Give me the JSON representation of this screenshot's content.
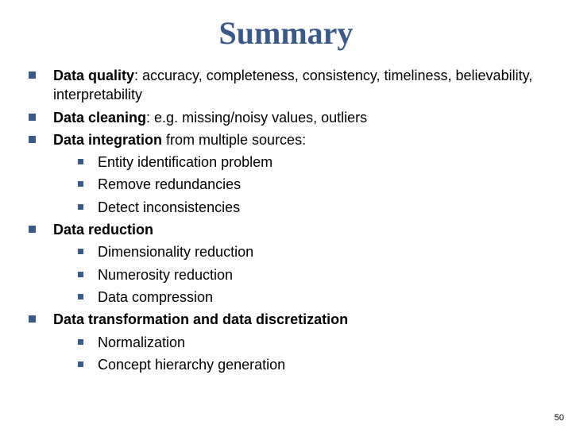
{
  "title": "Summary",
  "bullets": [
    {
      "bold": "Data quality",
      "rest": ": accuracy, completeness, consistency, timeliness, believability, interpretability"
    },
    {
      "bold": "Data cleaning",
      "rest": ": e.g. missing/noisy values, outliers"
    },
    {
      "bold": "Data integration",
      "rest": " from multiple sources:",
      "subs": [
        "Entity identification problem",
        "Remove redundancies",
        "Detect inconsistencies"
      ]
    },
    {
      "bold": "Data reduction",
      "rest": "",
      "subs": [
        "Dimensionality reduction",
        "Numerosity reduction",
        "Data compression"
      ]
    },
    {
      "bold": "Data transformation and data discretization",
      "rest": "",
      "subs": [
        "Normalization",
        "Concept hierarchy generation"
      ]
    }
  ],
  "page_number": "50",
  "colors": {
    "accent": "#3a5a8a",
    "text": "#000000",
    "background": "#ffffff"
  }
}
